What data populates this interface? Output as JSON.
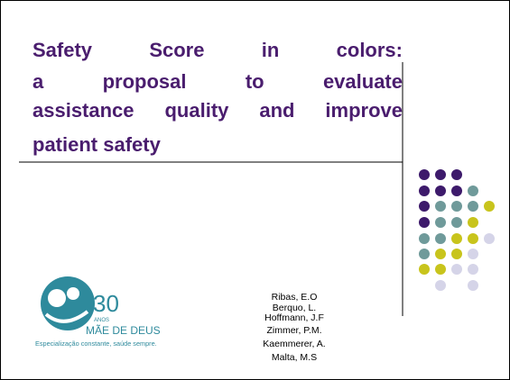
{
  "title_lines": [
    "Safety Score in colors:",
    "a proposal to evaluate",
    "assistance quality and improve",
    "patient safety"
  ],
  "authors": [
    "Ribas, E.O",
    "Berquo, L.",
    "Hoffmann, J.F",
    "Zimmer, P.M.",
    "Kaemmerer, A.",
    "Malta, M.S"
  ],
  "logo": {
    "number": "30",
    "anos": "ANOS",
    "name": "MÃE DE DEUS",
    "tagline": "Especialização constante, saúde sempre."
  }
}
